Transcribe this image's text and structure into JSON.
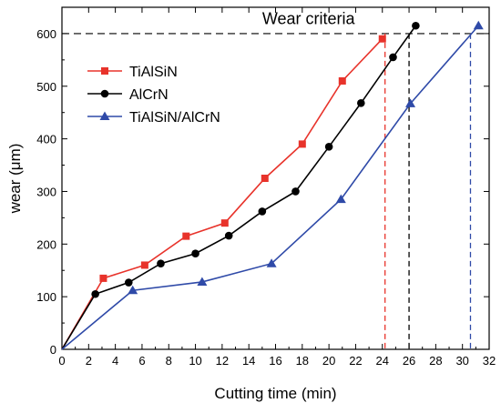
{
  "chart_data": {
    "type": "line",
    "xlabel": "Cutting time (min)",
    "ylabel": "wear (μm)",
    "xlim": [
      0,
      32
    ],
    "ylim": [
      0,
      650
    ],
    "x_ticks": [
      0,
      2,
      4,
      6,
      8,
      10,
      12,
      14,
      16,
      18,
      20,
      22,
      24,
      26,
      28,
      30,
      32
    ],
    "y_ticks": [
      0,
      100,
      200,
      300,
      400,
      500,
      600
    ],
    "grid": false,
    "legend_position": "top-left",
    "annotation": {
      "text": "Wear criteria",
      "threshold_y": 600
    },
    "series": [
      {
        "name": "TiAlSiN",
        "color": "#e8332b",
        "marker": "square",
        "x": [
          0,
          3.1,
          6.2,
          9.3,
          12.2,
          15.2,
          18.0,
          21.0,
          24.0
        ],
        "y": [
          0,
          135,
          160,
          215,
          240,
          325,
          390,
          510,
          590
        ],
        "end_time": 24.2
      },
      {
        "name": "AlCrN",
        "color": "#000000",
        "marker": "circle",
        "x": [
          0,
          2.5,
          5.0,
          7.4,
          10.0,
          12.5,
          15.0,
          17.5,
          20.0,
          22.4,
          24.8,
          26.5
        ],
        "y": [
          0,
          105,
          127,
          163,
          182,
          216,
          262,
          300,
          385,
          468,
          555,
          615
        ],
        "end_time": 26.0
      },
      {
        "name": "TiAlSiN/AlCrN",
        "color": "#2f4aa8",
        "marker": "triangle",
        "x": [
          0,
          5.3,
          10.5,
          15.7,
          20.9,
          26.1,
          31.2
        ],
        "y": [
          0,
          112,
          128,
          163,
          285,
          467,
          615
        ],
        "end_time": 30.6
      }
    ]
  }
}
